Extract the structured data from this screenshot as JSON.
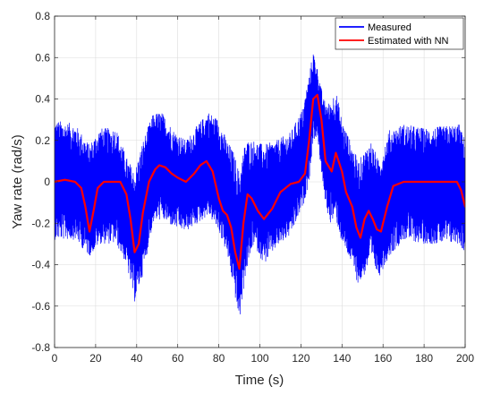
{
  "chart_data": {
    "type": "line",
    "title": "",
    "xlabel": "Time (s)",
    "ylabel": "Yaw rate (rad/s)",
    "xlim": [
      0,
      200
    ],
    "ylim": [
      -0.8,
      0.8
    ],
    "xticks": [
      0,
      20,
      40,
      60,
      80,
      100,
      120,
      140,
      160,
      180,
      200
    ],
    "yticks": [
      -0.8,
      -0.6,
      -0.4,
      -0.2,
      0,
      0.2,
      0.4,
      0.6,
      0.8
    ],
    "xtick_labels": [
      "0",
      "20",
      "40",
      "60",
      "80",
      "100",
      "120",
      "140",
      "160",
      "180",
      "200"
    ],
    "ytick_labels": [
      "-0.8",
      "-0.6",
      "-0.4",
      "-0.2",
      "0",
      "0.2",
      "0.4",
      "0.6",
      "0.8"
    ],
    "grid": true,
    "legend_position": "top-right",
    "series": [
      {
        "name": "Measured",
        "color": "#0000ff",
        "envelope": {
          "x": [
            0,
            10,
            17,
            22,
            30,
            35,
            39,
            43,
            48,
            52,
            58,
            64,
            70,
            75,
            80,
            84,
            87,
            90,
            93,
            97,
            102,
            108,
            115,
            121,
            124,
            126,
            128,
            131,
            134,
            137,
            140,
            144,
            148,
            151,
            154,
            158,
            163,
            170,
            180,
            190,
            197,
            200
          ],
          "upper": [
            0.3,
            0.28,
            0.18,
            0.26,
            0.26,
            0.12,
            0.05,
            0.2,
            0.33,
            0.34,
            0.25,
            0.2,
            0.28,
            0.34,
            0.3,
            0.2,
            0.15,
            0.05,
            0.2,
            0.2,
            0.18,
            0.2,
            0.24,
            0.36,
            0.52,
            0.63,
            0.55,
            0.4,
            0.38,
            0.45,
            0.3,
            0.2,
            0.1,
            0.15,
            0.2,
            0.1,
            0.25,
            0.28,
            0.26,
            0.27,
            0.28,
            0.2
          ],
          "lower": [
            -0.28,
            -0.28,
            -0.36,
            -0.3,
            -0.3,
            -0.4,
            -0.58,
            -0.45,
            -0.2,
            -0.18,
            -0.22,
            -0.24,
            -0.2,
            -0.16,
            -0.24,
            -0.35,
            -0.5,
            -0.68,
            -0.45,
            -0.3,
            -0.4,
            -0.32,
            -0.26,
            -0.12,
            0.0,
            0.2,
            0.22,
            -0.05,
            -0.2,
            -0.18,
            -0.3,
            -0.38,
            -0.5,
            -0.45,
            -0.38,
            -0.46,
            -0.36,
            -0.28,
            -0.3,
            -0.3,
            -0.3,
            -0.35
          ]
        }
      },
      {
        "name": "Estimated with NN",
        "color": "#ff0000",
        "x": [
          0,
          5,
          10,
          13,
          15,
          17,
          19,
          21,
          24,
          28,
          32,
          35,
          37,
          39,
          41,
          43,
          46,
          49,
          51,
          54,
          57,
          60,
          64,
          68,
          71,
          74,
          77,
          80,
          82,
          84,
          86,
          88,
          90,
          92,
          94,
          96,
          99,
          102,
          106,
          110,
          115,
          119,
          122,
          124,
          126,
          128,
          130,
          132,
          135,
          137,
          140,
          142,
          145,
          147,
          149,
          151,
          153,
          155,
          157,
          159,
          162,
          165,
          170,
          180,
          190,
          196,
          198,
          200
        ],
        "y": [
          0.0,
          0.01,
          0.0,
          -0.03,
          -0.12,
          -0.24,
          -0.14,
          -0.03,
          0.0,
          0.0,
          0.0,
          -0.06,
          -0.18,
          -0.34,
          -0.3,
          -0.15,
          0.0,
          0.06,
          0.08,
          0.07,
          0.04,
          0.02,
          0.0,
          0.04,
          0.08,
          0.1,
          0.05,
          -0.08,
          -0.14,
          -0.16,
          -0.22,
          -0.34,
          -0.42,
          -0.2,
          -0.06,
          -0.08,
          -0.14,
          -0.18,
          -0.13,
          -0.05,
          -0.01,
          0.0,
          0.04,
          0.2,
          0.4,
          0.42,
          0.3,
          0.1,
          0.05,
          0.14,
          0.05,
          -0.05,
          -0.12,
          -0.22,
          -0.27,
          -0.18,
          -0.14,
          -0.18,
          -0.23,
          -0.24,
          -0.12,
          -0.02,
          0.0,
          0.0,
          0.0,
          0.0,
          -0.04,
          -0.12
        ]
      }
    ]
  }
}
